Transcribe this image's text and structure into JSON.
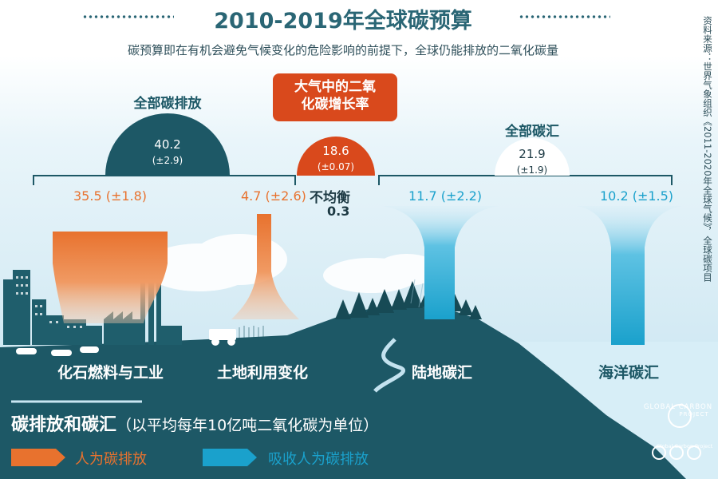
{
  "title": "2010-2019年全球碳预算",
  "subtitle": "碳预算即在有机会避免气候变化的危险影响的前提下，全球仍能排放的二氧化碳量",
  "source_note": "资料来源：世界气象组织《2011-2020年全球气候》，全球碳项目",
  "emissions": {
    "heading": "全部碳排放",
    "total": "40.2",
    "total_unc": "(±2.9)",
    "fossil_value": "35.5 (±1.8)",
    "land_value": "4.7 (±2.6)"
  },
  "atmosphere": {
    "heading": "大气中的二氧化碳增长率",
    "value": "18.6",
    "unc": "(±0.07)",
    "imbalance_label": "不均衡",
    "imbalance_value": "0.3"
  },
  "sinks": {
    "heading": "全部碳汇",
    "total": "21.9",
    "total_unc": "(±1.9)",
    "land_value": "11.7 (±2.2)",
    "ocean_value": "10.2 (±1.5)"
  },
  "labels": {
    "fossil": "化石燃料与工业",
    "land_use": "土地利用变化",
    "land_sink": "陆地碳汇",
    "ocean_sink": "海洋碳汇"
  },
  "legend": {
    "title": "碳排放和碳汇",
    "unit": "（以平均每年10亿吨二氧化碳为单位）",
    "emission": "人为碳排放",
    "absorption": "吸收人为碳排放"
  },
  "logo": {
    "line1": "GLOBAL CARBON",
    "line2": "PROJECT",
    "cc_caption": "Global Carbon Project"
  },
  "colors": {
    "emission": "#e8722e",
    "absorption": "#1aa1cc",
    "atmosphere": "#d9491c",
    "dark_teal": "#1d5866",
    "sky": "#d3ebf6"
  }
}
